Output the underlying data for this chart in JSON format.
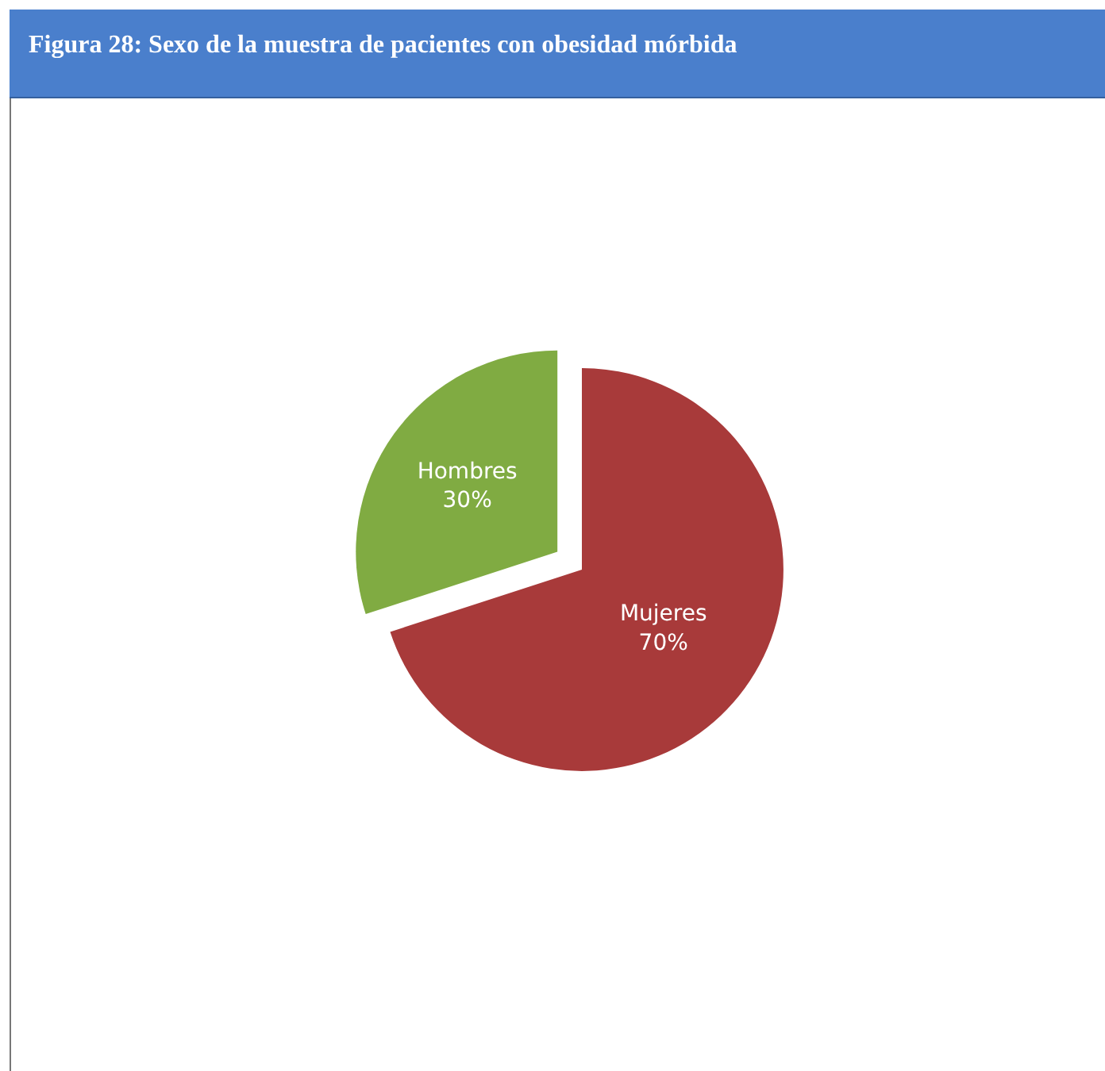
{
  "chart_data": {
    "type": "pie",
    "title": "Figura 28: Sexo de la muestra de pacientes con obesidad mórbida",
    "categories": [
      "Mujeres",
      "Hombres"
    ],
    "values": [
      70,
      30
    ],
    "value_labels": [
      "70%",
      "30%"
    ],
    "colors": [
      "#a83a3a",
      "#80ab42"
    ],
    "legend": false
  }
}
